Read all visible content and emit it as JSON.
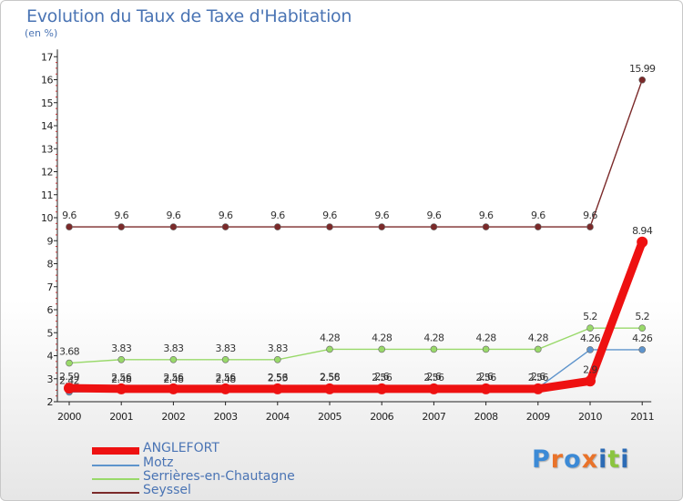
{
  "chart_data": {
    "type": "line",
    "title": "Evolution du Taux de Taxe d'Habitation",
    "subtitle": "(en %)",
    "xlabel": "",
    "ylabel": "",
    "ylim": [
      2,
      17
    ],
    "yticks": [
      "2",
      "3",
      "4",
      "5",
      "6",
      "7",
      "8",
      "9",
      "10",
      "11",
      "12",
      "13",
      "14",
      "15",
      "16",
      "17"
    ],
    "categories": [
      "2000",
      "2001",
      "2002",
      "2003",
      "2004",
      "2005",
      "2006",
      "2007",
      "2008",
      "2009",
      "2010",
      "2011"
    ],
    "series": [
      {
        "name": "Seyssel",
        "color": "#7b2a2a",
        "values": [
          9.6,
          9.6,
          9.6,
          9.6,
          9.6,
          9.6,
          9.6,
          9.6,
          9.6,
          9.6,
          9.6,
          15.99
        ],
        "labels": [
          "9.6",
          "9.6",
          "9.6",
          "9.6",
          "9.6",
          "9.6",
          "9.6",
          "9.6",
          "9.6",
          "9.6",
          "9.6",
          "15.99"
        ]
      },
      {
        "name": "Serrières-en-Chautagne",
        "color": "#99d96a",
        "values": [
          3.68,
          3.83,
          3.83,
          3.83,
          3.83,
          4.28,
          4.28,
          4.28,
          4.28,
          4.28,
          5.2,
          5.2
        ],
        "labels": [
          "3.68",
          "3.83",
          "3.83",
          "3.83",
          "3.83",
          "4.28",
          "4.28",
          "4.28",
          "4.28",
          "4.28",
          "5.2",
          "5.2"
        ]
      },
      {
        "name": "Motz",
        "color": "#5e94cc",
        "values": [
          2.42,
          2.48,
          2.48,
          2.48,
          2.53,
          2.58,
          2.6,
          2.6,
          2.6,
          2.6,
          4.26,
          4.26
        ],
        "labels": [
          "2.42",
          "2.48",
          "2.48",
          "2.48",
          "2.53",
          "2.58",
          "2.6",
          "2.6",
          "2.6",
          "2.6",
          "4.26",
          "4.26"
        ]
      },
      {
        "name": "ANGLEFORT",
        "color": "#ee1111",
        "values": [
          2.59,
          2.56,
          2.56,
          2.56,
          2.56,
          2.56,
          2.56,
          2.56,
          2.56,
          2.56,
          2.9,
          8.94
        ],
        "labels": [
          "2.59",
          "2.56",
          "2.56",
          "2.56",
          "2.56",
          "2.56",
          "2.56",
          "2.56",
          "2.56",
          "2.56",
          "2.9",
          "8.94"
        ]
      }
    ],
    "legend": {
      "position": "bottom-left",
      "items": [
        "ANGLEFORT",
        "Motz",
        "Serrières-en-Chautagne",
        "Seyssel"
      ]
    }
  },
  "logo": {
    "letters": [
      "P",
      "r",
      "o",
      "x",
      "i",
      "t",
      "i"
    ],
    "colors": [
      "#3c8ad6",
      "#e9732a",
      "#3c8ad6",
      "#e9732a",
      "#2c6bb5",
      "#8bc43f",
      "#2c6bb5"
    ]
  }
}
